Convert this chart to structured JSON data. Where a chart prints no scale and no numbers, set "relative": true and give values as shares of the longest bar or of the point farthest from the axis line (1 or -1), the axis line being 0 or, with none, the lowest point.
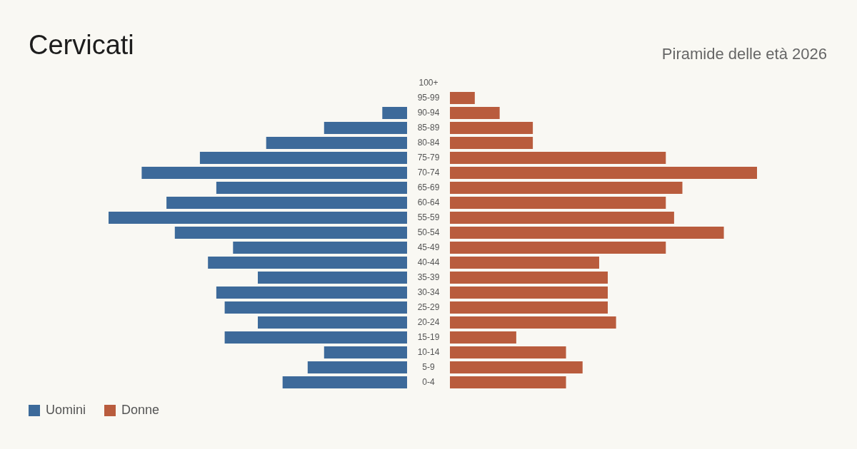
{
  "chart_data": [
    {
      "type": "bar",
      "orientation": "horizontal",
      "relative": true,
      "title": "Cervicati",
      "legend": "bottom left",
      "categories": [
        "100+",
        "95-99",
        "90-94",
        "85-89",
        "80-84",
        "75-79",
        "70-74",
        "65-69",
        "60-64",
        "55-59",
        "50-54",
        "45-49",
        "40-44",
        "35-39",
        "30-34",
        "25-29",
        "20-24",
        "15-19",
        "10-14",
        "5-9",
        "0-4"
      ],
      "series": [
        {
          "name": "Uomini",
          "color": "#3d6a9a",
          "values": [
            0,
            0,
            -0.083,
            -0.278,
            -0.472,
            -0.694,
            -0.889,
            -0.639,
            -0.806,
            -1,
            -0.778,
            -0.583,
            -0.667,
            -0.5,
            -0.639,
            -0.611,
            -0.5,
            -0.611,
            -0.278,
            -0.333,
            -0.417
          ]
        }
      ]
    },
    {
      "type": "bar",
      "orientation": "horizontal",
      "relative": true,
      "subtitle": "Piramide delle età 2026",
      "legend": "bottom left",
      "categories": [
        null,
        null,
        null,
        null,
        null,
        null,
        null,
        null,
        null,
        null,
        null,
        null,
        null,
        null,
        null,
        null,
        null,
        null,
        null,
        null,
        null
      ],
      "series": [
        {
          "name": "Donne",
          "color": "#b95c3d",
          "values": [
            0,
            0.081,
            0.162,
            0.27,
            0.27,
            0.703,
            1,
            0.757,
            0.703,
            0.73,
            0.892,
            0.703,
            0.486,
            0.514,
            0.514,
            0.514,
            0.541,
            0.216,
            0.378,
            0.432,
            0.378
          ]
        }
      ]
    }
  ]
}
